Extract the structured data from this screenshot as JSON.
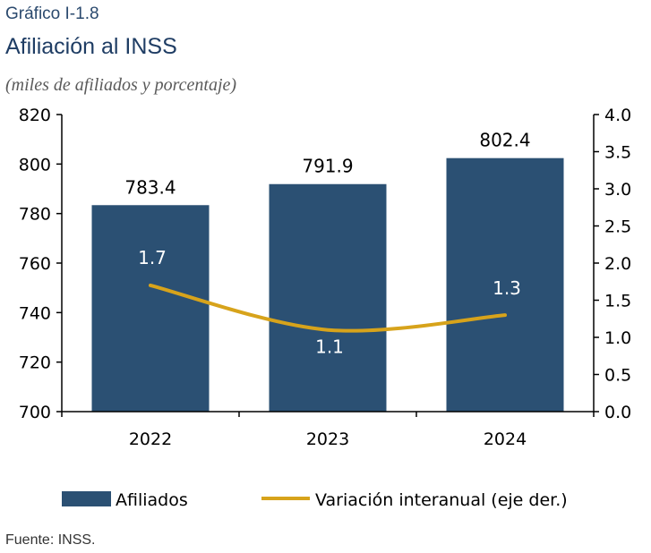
{
  "figure": {
    "label": "Gráfico I-1.8",
    "title": "Afiliación al INSS",
    "subtitle": "(miles de afiliados y porcentaje)",
    "source": "Fuente: INSS."
  },
  "colors": {
    "bar": "#2b5073",
    "line": "#d7a31b",
    "axis": "#000000"
  },
  "chart_data": {
    "type": "bar",
    "categories": [
      "2022",
      "2023",
      "2024"
    ],
    "series": [
      {
        "name": "Afiliados",
        "type": "bar",
        "axis": "left",
        "values": [
          783.4,
          791.9,
          802.4
        ]
      },
      {
        "name": "Variación interanual (eje der.)",
        "type": "line",
        "axis": "right",
        "values": [
          1.7,
          1.1,
          1.3
        ]
      }
    ],
    "bar_labels": [
      "783.4",
      "791.9",
      "802.4"
    ],
    "line_labels": [
      "1.7",
      "1.1",
      "1.3"
    ],
    "y_left": {
      "min": 700,
      "max": 820,
      "ticks": [
        "700",
        "720",
        "740",
        "760",
        "780",
        "800",
        "820"
      ]
    },
    "y_right": {
      "min": 0,
      "max": 4,
      "ticks": [
        "0.0",
        "0.5",
        "1.0",
        "1.5",
        "2.0",
        "2.5",
        "3.0",
        "3.5",
        "4.0"
      ]
    },
    "grid": false,
    "legend": {
      "position": "bottom",
      "entries": [
        "Afiliados",
        "Variación interanual (eje der.)"
      ]
    }
  }
}
